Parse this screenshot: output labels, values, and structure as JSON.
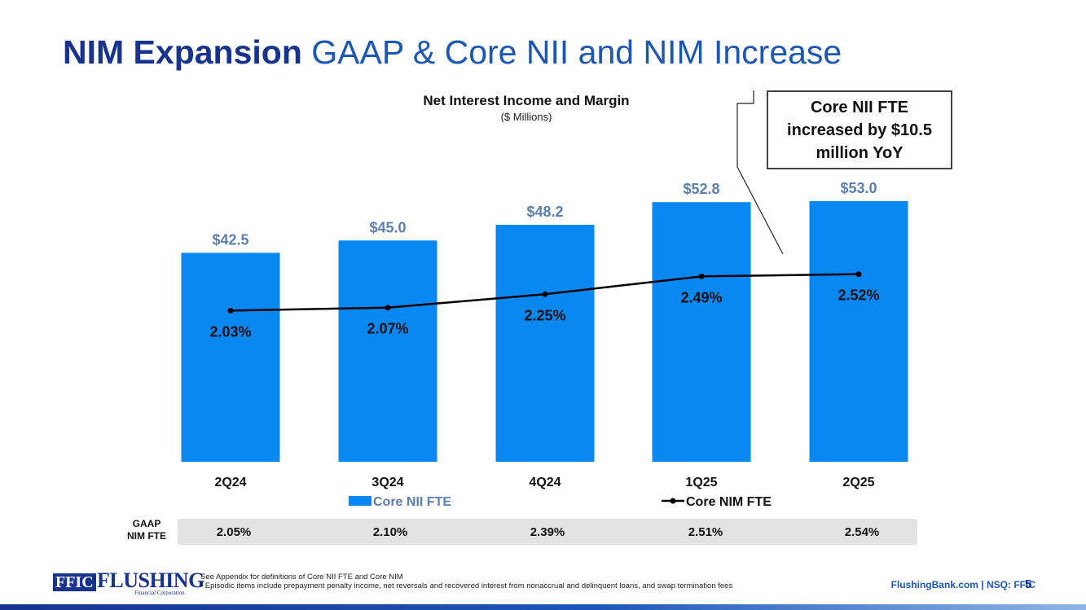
{
  "slide": {
    "title_bold": "NIM Expansion",
    "title_rest": "GAAP & Core NII and NIM Increase",
    "callout": "Core NII FTE increased by $10.5 million YoY",
    "gaap_label_line1": "GAAP",
    "gaap_label_line2": "NIM FTE",
    "gaap_values": [
      "2.05%",
      "2.10%",
      "2.39%",
      "2.51%",
      "2.54%"
    ],
    "footnote_line1": "See Appendix for definitions of Core NII FTE and Core NIM",
    "footnote_line2": "¹ Episodic items include prepayment penalty income, net reversals and recovered interest from nonaccrual and delinquent loans, and swap termination fees",
    "footer_right": "FlushingBank.com  |  NSQ: FFIC",
    "page_number": "5",
    "logo_ffic": "FFIC",
    "logo_flushing": "FLUSHING",
    "logo_sub": "Financial Corporation"
  },
  "colors": {
    "bar": "#0a88f2",
    "bar_label": "#5b7fb5",
    "line": "#000000",
    "title_bold": "#17338e",
    "title_light": "#1c57b8"
  },
  "chart_data": {
    "type": "bar",
    "title": "Net Interest Income and Margin",
    "subtitle": "($ Millions)",
    "categories": [
      "2Q24",
      "3Q24",
      "4Q24",
      "1Q25",
      "2Q25"
    ],
    "series": [
      {
        "name": "Core NII FTE",
        "kind": "bar",
        "values": [
          42.5,
          45.0,
          48.2,
          52.8,
          53.0
        ],
        "labels": [
          "$42.5",
          "$45.0",
          "$48.2",
          "$52.8",
          "$53.0"
        ]
      },
      {
        "name": "Core NIM FTE",
        "kind": "line",
        "values": [
          2.03,
          2.07,
          2.25,
          2.49,
          2.52
        ],
        "labels": [
          "2.03%",
          "2.07%",
          "2.25%",
          "2.49%",
          "2.52%"
        ]
      }
    ],
    "bar_ylim": [
      0,
      53
    ],
    "line_ylim": [
      0,
      3.5
    ],
    "legend": [
      "Core NII FTE",
      "Core NIM FTE"
    ],
    "legend_position": "bottom"
  }
}
